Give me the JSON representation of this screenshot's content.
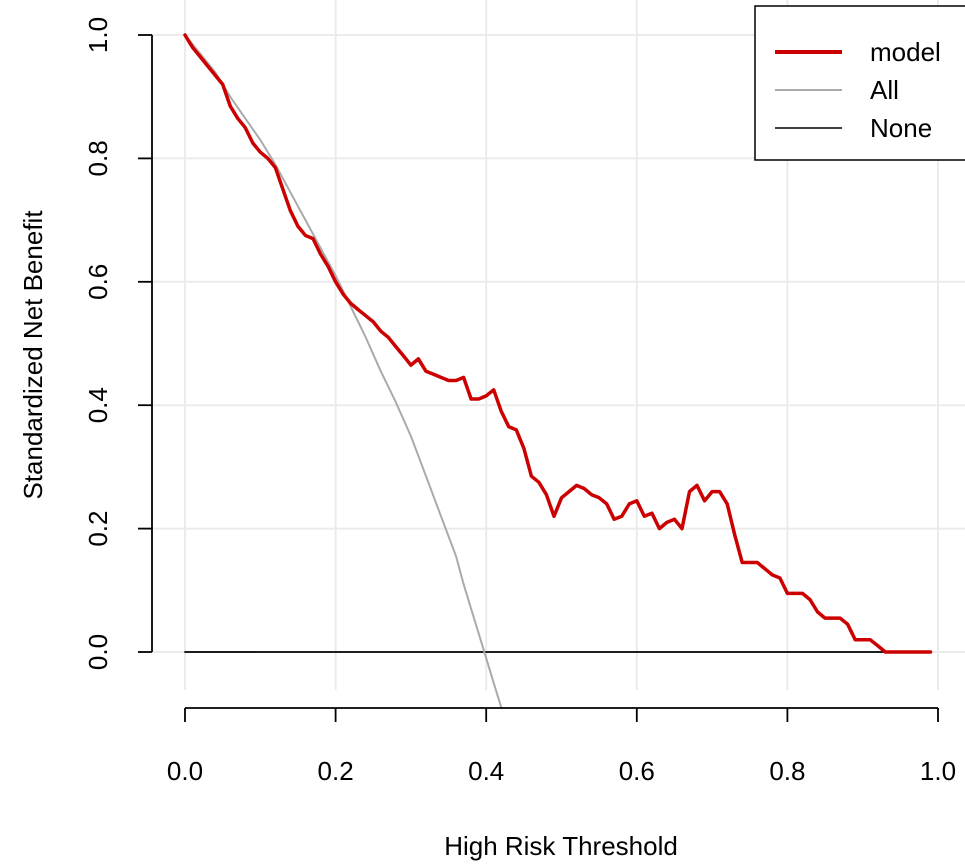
{
  "chart_data": {
    "type": "line",
    "title": "",
    "xlabel": "High Risk Threshold",
    "ylabel": "Standardized Net Benefit",
    "xlim": [
      0,
      1
    ],
    "ylim": [
      -0.1,
      1.0
    ],
    "x_ticks": [
      "0.0",
      "0.2",
      "0.4",
      "0.6",
      "0.8",
      "1.0"
    ],
    "y_ticks": [
      "0.0",
      "0.2",
      "0.4",
      "0.6",
      "0.8",
      "1.0"
    ],
    "grid": true,
    "legend_position": "top-right",
    "series": [
      {
        "name": "model",
        "color": "#cc0000",
        "x": [
          0.0,
          0.01,
          0.02,
          0.03,
          0.04,
          0.05,
          0.06,
          0.07,
          0.08,
          0.09,
          0.1,
          0.11,
          0.12,
          0.13,
          0.14,
          0.15,
          0.16,
          0.17,
          0.18,
          0.19,
          0.2,
          0.21,
          0.22,
          0.23,
          0.24,
          0.25,
          0.26,
          0.27,
          0.28,
          0.29,
          0.3,
          0.31,
          0.32,
          0.33,
          0.34,
          0.35,
          0.36,
          0.37,
          0.38,
          0.39,
          0.4,
          0.41,
          0.42,
          0.43,
          0.44,
          0.45,
          0.46,
          0.47,
          0.48,
          0.49,
          0.5,
          0.51,
          0.52,
          0.53,
          0.54,
          0.55,
          0.56,
          0.57,
          0.58,
          0.59,
          0.6,
          0.61,
          0.62,
          0.63,
          0.64,
          0.65,
          0.66,
          0.67,
          0.68,
          0.69,
          0.7,
          0.71,
          0.72,
          0.73,
          0.74,
          0.75,
          0.76,
          0.77,
          0.78,
          0.79,
          0.8,
          0.81,
          0.82,
          0.83,
          0.84,
          0.85,
          0.86,
          0.87,
          0.88,
          0.89,
          0.9,
          0.91,
          0.92,
          0.93,
          0.94,
          0.95,
          0.96,
          0.97,
          0.98,
          0.99
        ],
        "y": [
          1.0,
          0.98,
          0.965,
          0.95,
          0.935,
          0.92,
          0.885,
          0.865,
          0.85,
          0.825,
          0.81,
          0.8,
          0.785,
          0.75,
          0.715,
          0.69,
          0.675,
          0.67,
          0.645,
          0.625,
          0.6,
          0.58,
          0.565,
          0.555,
          0.545,
          0.535,
          0.52,
          0.51,
          0.495,
          0.48,
          0.465,
          0.475,
          0.455,
          0.45,
          0.445,
          0.44,
          0.44,
          0.445,
          0.41,
          0.41,
          0.415,
          0.425,
          0.39,
          0.365,
          0.36,
          0.33,
          0.285,
          0.275,
          0.255,
          0.22,
          0.25,
          0.26,
          0.27,
          0.265,
          0.255,
          0.25,
          0.24,
          0.215,
          0.22,
          0.24,
          0.245,
          0.22,
          0.225,
          0.2,
          0.21,
          0.215,
          0.2,
          0.26,
          0.27,
          0.245,
          0.26,
          0.26,
          0.24,
          0.19,
          0.145,
          0.145,
          0.145,
          0.135,
          0.125,
          0.12,
          0.095,
          0.095,
          0.095,
          0.085,
          0.065,
          0.055,
          0.055,
          0.055,
          0.045,
          0.02,
          0.02,
          0.02,
          0.01,
          0.0,
          0.0,
          0.0,
          0.0,
          0.0,
          0.0,
          0.0
        ]
      },
      {
        "name": "All",
        "color": "#aaaaaa",
        "x": [
          0.0,
          0.02,
          0.04,
          0.06,
          0.08,
          0.1,
          0.12,
          0.14,
          0.16,
          0.18,
          0.2,
          0.22,
          0.24,
          0.26,
          0.28,
          0.3,
          0.32,
          0.34,
          0.36,
          0.37,
          0.38,
          0.39,
          0.4,
          0.41,
          0.42
        ],
        "y": [
          1.0,
          0.97,
          0.94,
          0.9,
          0.865,
          0.83,
          0.79,
          0.745,
          0.7,
          0.655,
          0.61,
          0.56,
          0.51,
          0.455,
          0.405,
          0.35,
          0.285,
          0.22,
          0.155,
          0.11,
          0.07,
          0.03,
          -0.01,
          -0.05,
          -0.09
        ]
      },
      {
        "name": "None",
        "color": "#000000",
        "x": [
          0.0,
          0.99
        ],
        "y": [
          0.0,
          0.0
        ]
      }
    ]
  }
}
